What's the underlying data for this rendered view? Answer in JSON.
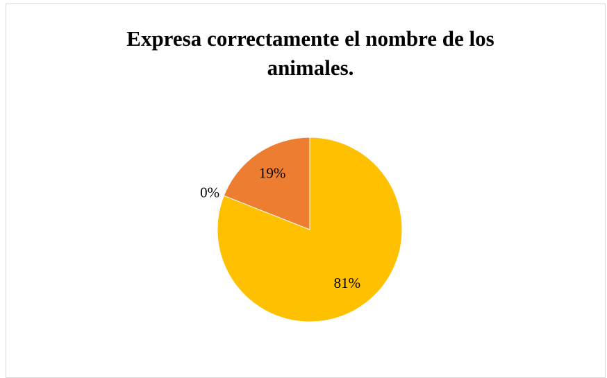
{
  "chart_data": {
    "type": "pie",
    "title": "Expresa correctamente el nombre de los animales.",
    "values": [
      81,
      0,
      19
    ],
    "value_labels": [
      "81%",
      "0%",
      "19%"
    ],
    "colors": [
      "#ffc000",
      "#a5a5a5",
      "#ed7d31"
    ]
  }
}
